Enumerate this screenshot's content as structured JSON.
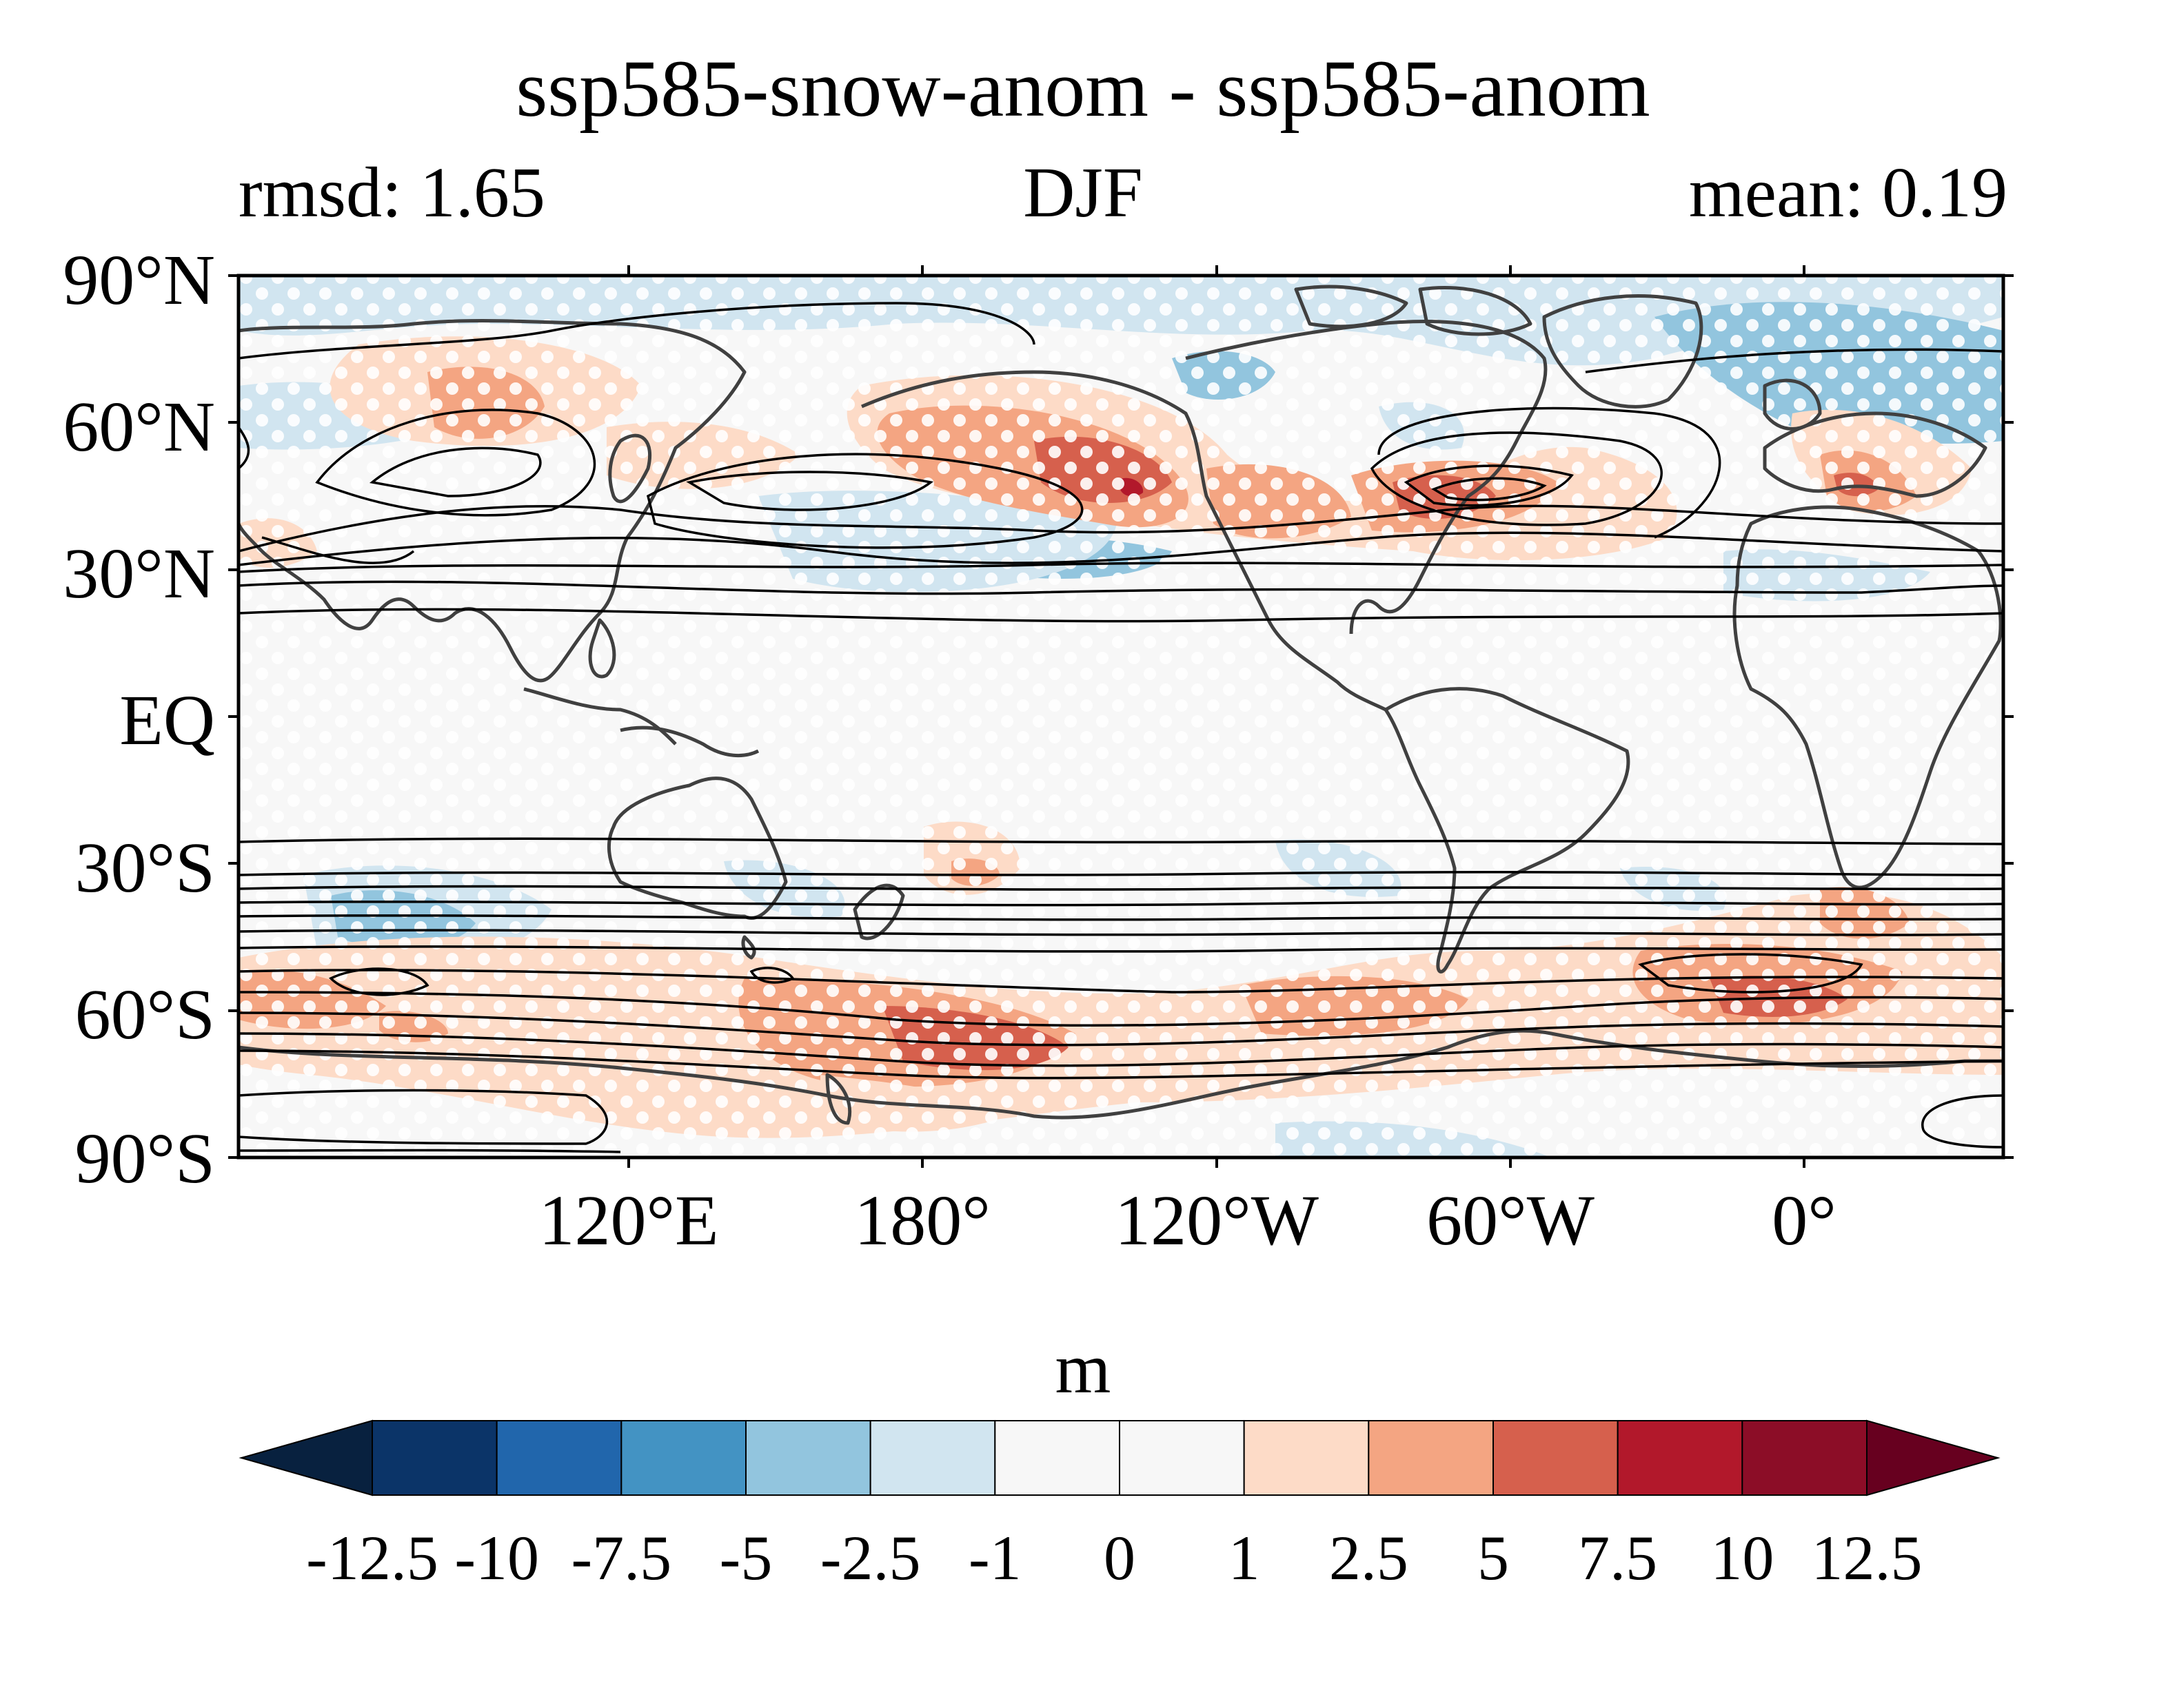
{
  "title": "ssp585-snow-anom - ssp585-anom",
  "left_subtitle": "rmsd: 1.65",
  "center_subtitle": "DJF",
  "right_subtitle": "mean: 0.19",
  "lat_labels": [
    "90°N",
    "60°N",
    "30°N",
    "EQ",
    "30°S",
    "60°S",
    "90°S"
  ],
  "lon_labels": [
    "120°E",
    "180°",
    "120°W",
    "60°W",
    "0°"
  ],
  "colorbar": {
    "units": "m",
    "tick_labels": [
      "-12.5",
      "-10",
      "-7.5",
      "-5",
      "-2.5",
      "-1",
      "0",
      "1",
      "2.5",
      "5",
      "7.5",
      "10",
      "12.5"
    ],
    "colors": [
      "#08213f",
      "#0b3468",
      "#2166ac",
      "#4393c3",
      "#92c5de",
      "#d1e5f0",
      "#f7f7f7",
      "#f7f7f7",
      "#fddbc7",
      "#f4a582",
      "#d6604d",
      "#b2182b",
      "#8c0d27",
      "#67001f"
    ]
  },
  "map": {
    "projection": "equirectangular",
    "lon_range": [
      40,
      400
    ],
    "lat_range": [
      -90,
      90
    ],
    "central_longitude": 220,
    "background_color": "#f7f7f7",
    "coastline_color": "#404040",
    "contour_color": "#000000",
    "stipple_color": "#ffffff"
  }
}
